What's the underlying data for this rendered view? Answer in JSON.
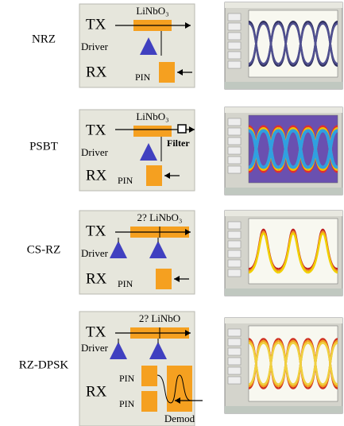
{
  "rows": [
    {
      "format": "NRZ",
      "tx": "TX",
      "modulator": "LiNbO₃",
      "driver": "Driver",
      "rx": "RX",
      "pin": "PIN"
    },
    {
      "format": "PSBT",
      "tx": "TX",
      "modulator": "LiNbO₃",
      "driver": "Driver",
      "filter": "Filter",
      "rx": "RX",
      "pin": "PIN"
    },
    {
      "format": "CS-RZ",
      "tx": "TX",
      "modulator": "2? LiNbO₃",
      "driver": "Driver",
      "rx": "RX",
      "pin": "PIN"
    },
    {
      "format": "RZ-DPSK",
      "tx": "TX",
      "modulator": "2? LiNbO",
      "driver": "Driver",
      "rx": "RX",
      "pin": "PIN",
      "pin2": "PIN",
      "demod": "Demod"
    }
  ]
}
